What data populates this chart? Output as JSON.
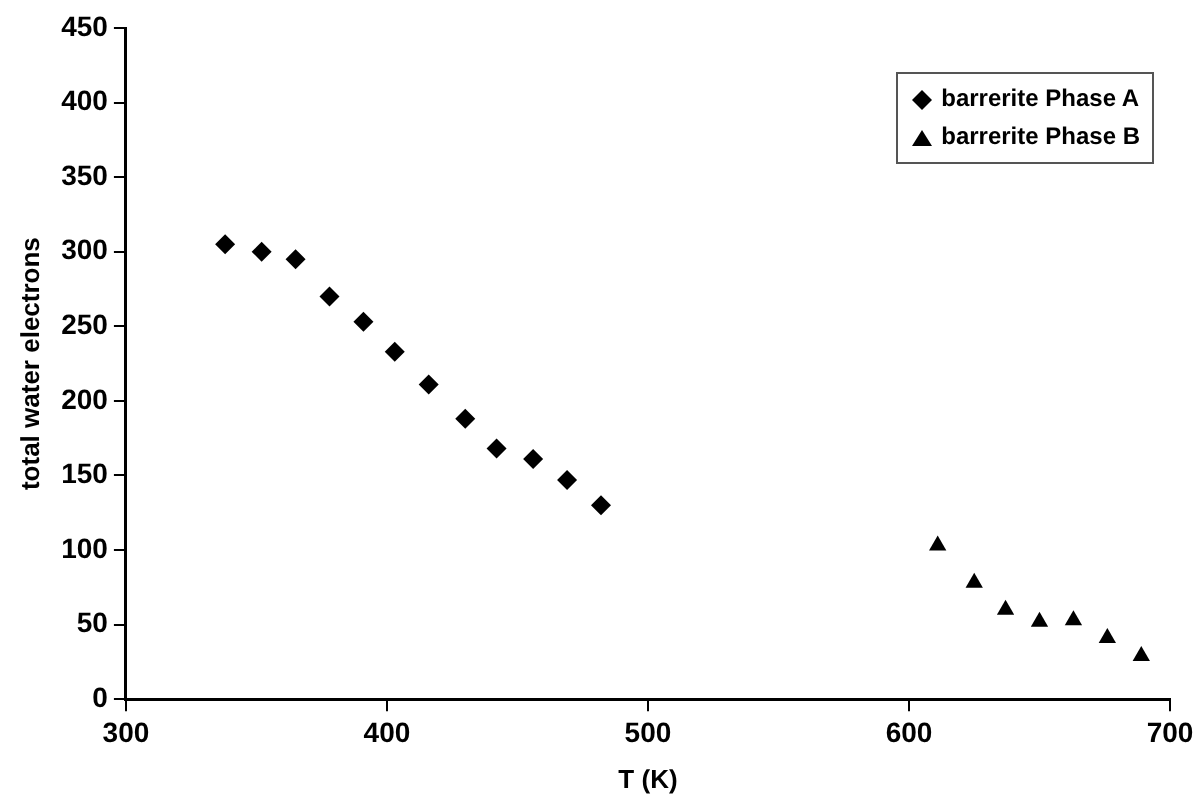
{
  "chart_data": {
    "type": "scatter",
    "xlabel": "T (K)",
    "ylabel": "total water electrons",
    "xlim": [
      300,
      700
    ],
    "xticks": [
      300,
      400,
      500,
      600,
      700
    ],
    "ylim": [
      0,
      450
    ],
    "yticks": [
      0,
      50,
      100,
      150,
      200,
      250,
      300,
      350,
      400,
      450
    ],
    "grid": false,
    "legend": "top right",
    "series": [
      {
        "name": "barrerite Phase A",
        "color": "#000000",
        "marker": "diamond",
        "x": [
          338,
          352,
          365,
          378,
          391,
          403,
          416,
          430,
          442,
          456,
          469,
          482
        ],
        "values": [
          305,
          300,
          295,
          270,
          253,
          233,
          211,
          188,
          168,
          161,
          147,
          130
        ]
      },
      {
        "name": "barrerite Phase B",
        "color": "#000000",
        "marker": "triangle",
        "x": [
          611,
          625,
          637,
          650,
          663,
          676,
          689
        ],
        "values": [
          103,
          78,
          60,
          52,
          53,
          41,
          29
        ]
      }
    ]
  }
}
